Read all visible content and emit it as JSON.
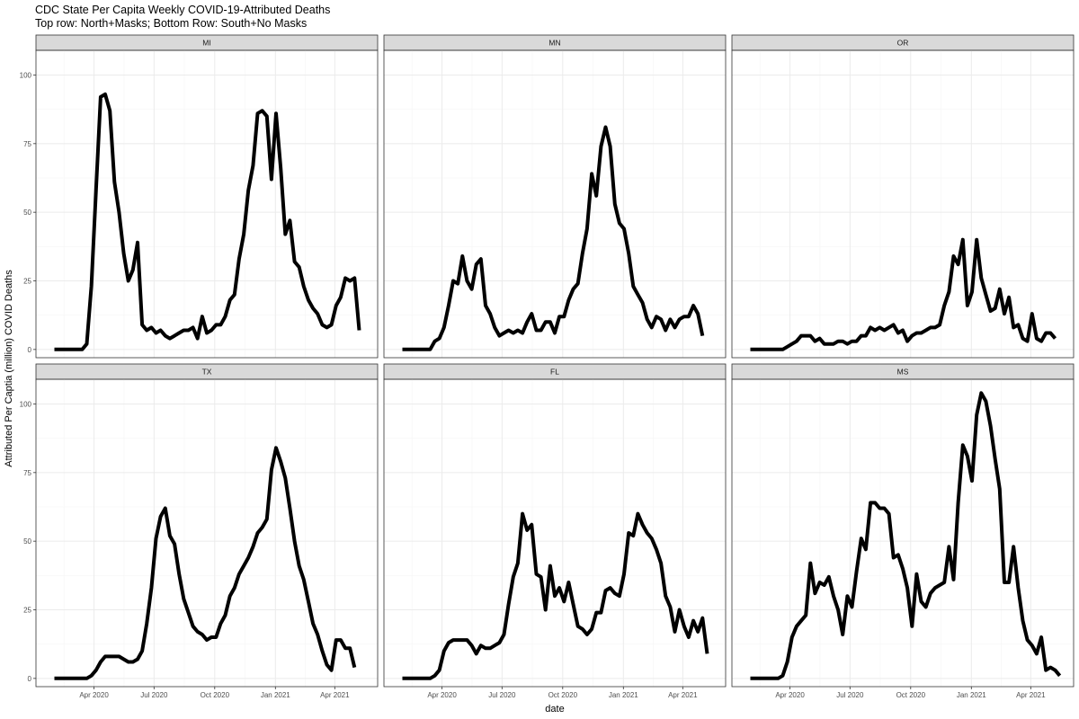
{
  "chart_data": {
    "type": "line",
    "title": "CDC State Per Capita Weekly COVID-19-Attributed Deaths",
    "subtitle": "Top row: North+Masks; Bottom Row: South+No Masks",
    "xlabel": "date",
    "ylabel": "Attributed Per Captia (million) COVID Deaths",
    "ylim": [
      -3,
      109
    ],
    "xlim": [
      "2020-01-04",
      "2021-06-05"
    ],
    "y_ticks": [
      0,
      25,
      50,
      75,
      100
    ],
    "x_ticks": [
      {
        "date": "2020-04-01",
        "label": "Apr 2020"
      },
      {
        "date": "2020-07-01",
        "label": "Jul 2020"
      },
      {
        "date": "2020-10-01",
        "label": "Oct 2020"
      },
      {
        "date": "2021-01-01",
        "label": "Jan 2021"
      },
      {
        "date": "2021-04-01",
        "label": "Apr 2021"
      }
    ],
    "grid": true,
    "x_start": "2020-02-01",
    "x_step_days": 7,
    "panels": [
      {
        "name": "MI",
        "values": [
          0,
          0,
          0,
          0,
          0,
          0,
          0,
          2,
          23,
          58,
          92,
          93,
          87,
          61,
          50,
          35,
          25,
          29,
          39,
          9,
          7,
          8,
          6,
          7,
          5,
          4,
          5,
          6,
          7,
          7,
          8,
          4,
          12,
          6,
          7,
          9,
          9,
          12,
          18,
          20,
          33,
          42,
          58,
          67,
          86,
          87,
          85,
          62,
          86,
          66,
          42,
          47,
          32,
          30,
          23,
          18,
          15,
          13,
          9,
          8,
          9,
          16,
          19,
          26,
          25,
          26,
          7
        ]
      },
      {
        "name": "MN",
        "values": [
          0,
          0,
          0,
          0,
          0,
          0,
          0,
          3,
          4,
          8,
          16,
          25,
          24,
          34,
          25,
          22,
          31,
          33,
          16,
          13,
          8,
          5,
          6,
          7,
          6,
          7,
          6,
          10,
          13,
          7,
          7,
          10,
          10,
          6,
          12,
          12,
          18,
          22,
          24,
          35,
          44,
          64,
          56,
          74,
          81,
          74,
          53,
          46,
          44,
          35,
          23,
          20,
          17,
          11,
          8,
          12,
          11,
          7,
          11,
          8,
          11,
          12,
          12,
          16,
          13,
          5
        ]
      },
      {
        "name": "OR",
        "values": [
          0,
          0,
          0,
          0,
          0,
          0,
          0,
          0,
          1,
          2,
          3,
          5,
          5,
          5,
          3,
          4,
          2,
          2,
          2,
          3,
          3,
          2,
          3,
          3,
          5,
          5,
          8,
          7,
          8,
          7,
          8,
          9,
          6,
          7,
          3,
          5,
          6,
          6,
          7,
          8,
          8,
          9,
          16,
          21,
          34,
          31,
          40,
          16,
          21,
          40,
          26,
          20,
          14,
          15,
          22,
          13,
          19,
          8,
          9,
          4,
          3,
          13,
          4,
          3,
          6,
          6,
          4
        ]
      },
      {
        "name": "TX",
        "values": [
          0,
          0,
          0,
          0,
          0,
          0,
          0,
          0,
          1,
          3,
          6,
          8,
          8,
          8,
          8,
          7,
          6,
          6,
          7,
          10,
          20,
          33,
          51,
          59,
          62,
          52,
          49,
          38,
          29,
          24,
          19,
          17,
          16,
          14,
          15,
          15,
          20,
          23,
          30,
          33,
          38,
          41,
          44,
          48,
          53,
          55,
          58,
          76,
          84,
          79,
          73,
          62,
          50,
          41,
          36,
          28,
          20,
          16,
          10,
          5,
          3,
          14,
          14,
          11,
          11,
          4
        ]
      },
      {
        "name": "FL",
        "values": [
          0,
          0,
          0,
          0,
          0,
          0,
          0,
          1,
          3,
          10,
          13,
          14,
          14,
          14,
          14,
          12,
          9,
          12,
          11,
          11,
          12,
          13,
          16,
          27,
          37,
          42,
          60,
          54,
          56,
          38,
          37,
          25,
          41,
          30,
          33,
          28,
          35,
          27,
          19,
          18,
          16,
          18,
          24,
          24,
          32,
          33,
          31,
          30,
          38,
          53,
          52,
          60,
          56,
          53,
          51,
          47,
          42,
          30,
          26,
          17,
          25,
          19,
          15,
          21,
          17,
          22,
          9
        ]
      },
      {
        "name": "MS",
        "values": [
          0,
          0,
          0,
          0,
          0,
          0,
          0,
          1,
          6,
          15,
          19,
          21,
          23,
          42,
          31,
          35,
          34,
          37,
          30,
          25,
          16,
          30,
          26,
          39,
          51,
          47,
          64,
          64,
          62,
          62,
          60,
          44,
          45,
          40,
          33,
          19,
          38,
          28,
          26,
          31,
          33,
          34,
          35,
          48,
          36,
          64,
          85,
          81,
          72,
          96,
          104,
          101,
          92,
          80,
          69,
          35,
          35,
          48,
          33,
          21,
          14,
          12,
          9,
          15,
          3,
          4,
          3,
          1
        ]
      }
    ]
  }
}
